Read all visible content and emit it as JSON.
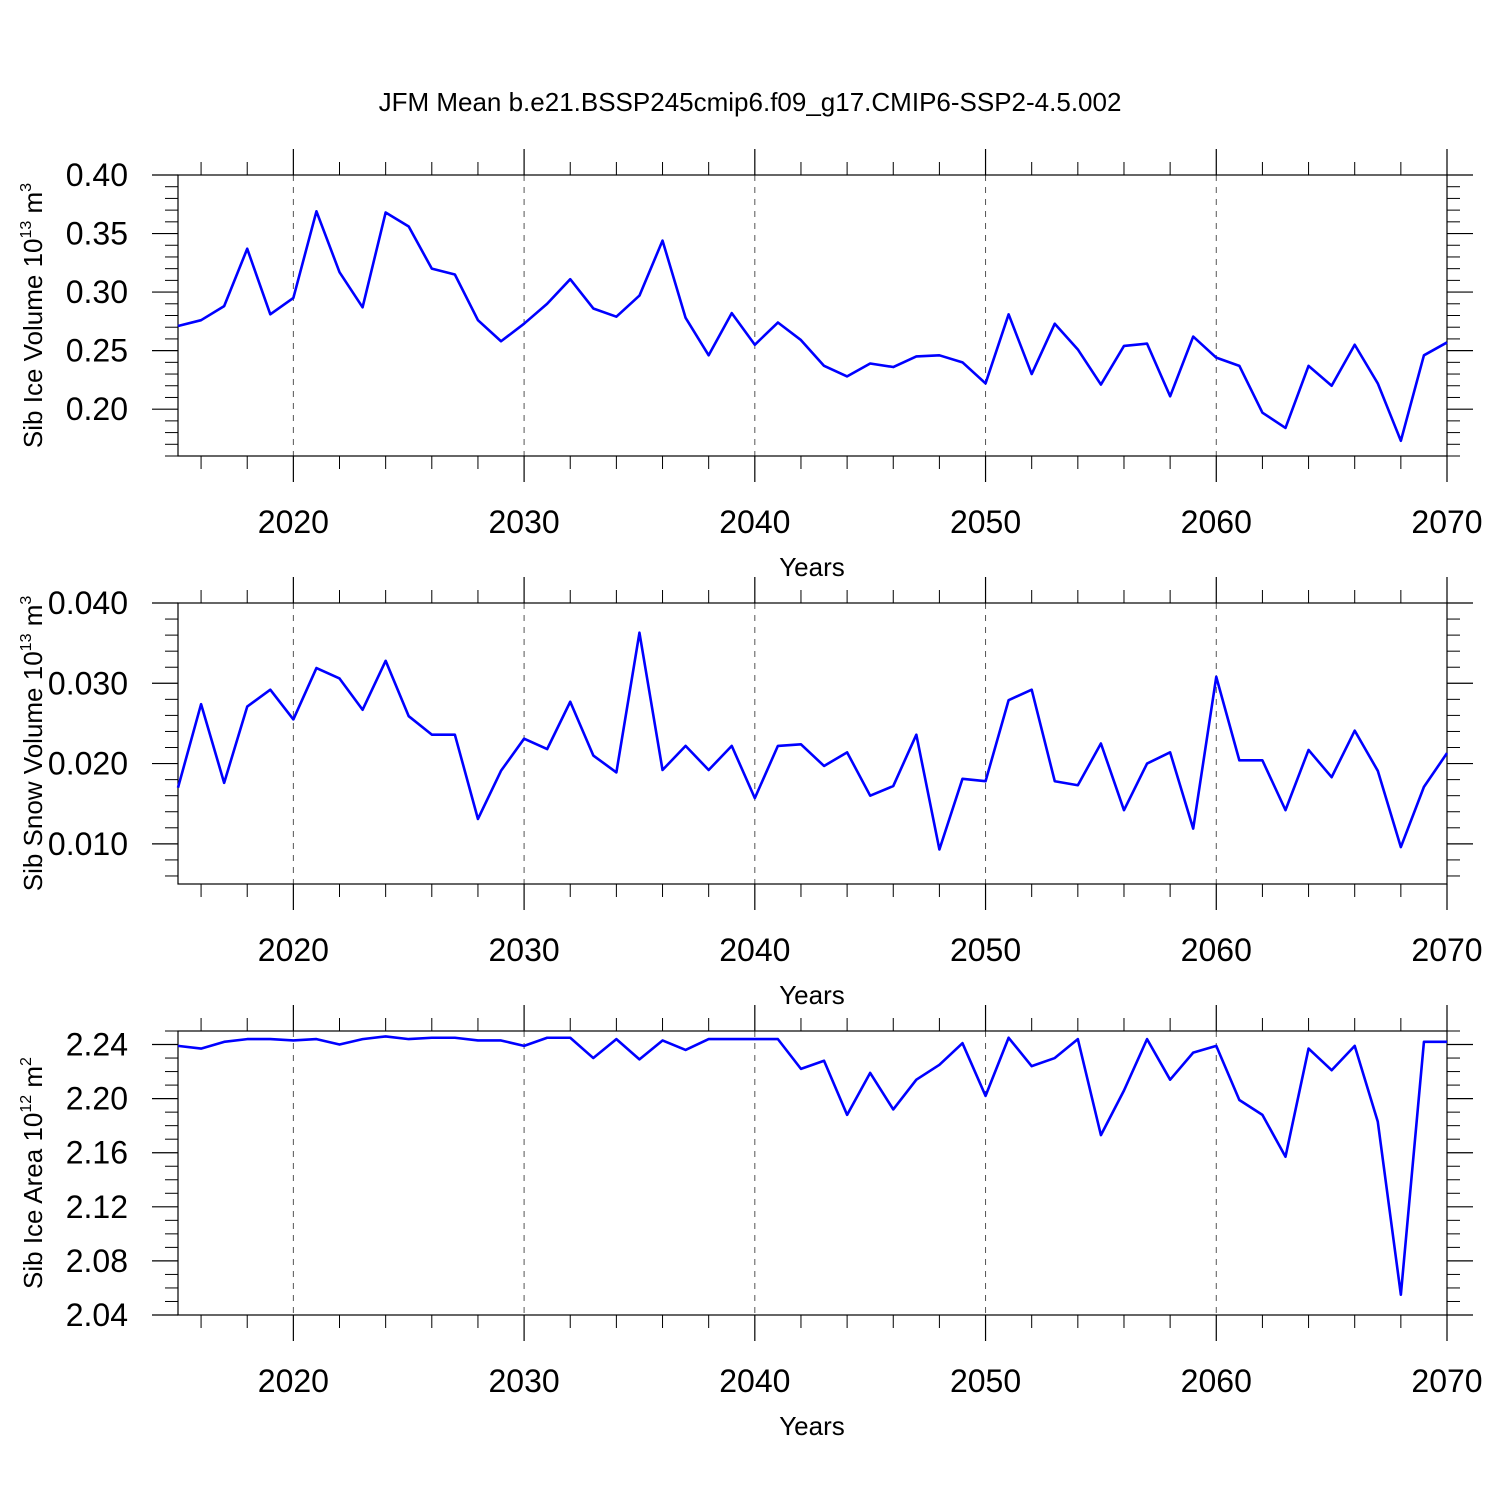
{
  "chart_data": [
    {
      "type": "line",
      "title": "JFM Mean b.e21.BSSP245cmip6.f09_g17.CMIP6-SSP2-4.5.002",
      "ylabel": [
        "Sib Ice Volume 10",
        "13",
        " m",
        "3"
      ],
      "xlabel": "Years",
      "color": "#0000ff",
      "grid": true,
      "x": [
        2015,
        2016,
        2017,
        2018,
        2019,
        2020,
        2021,
        2022,
        2023,
        2024,
        2025,
        2026,
        2027,
        2028,
        2029,
        2030,
        2031,
        2032,
        2033,
        2034,
        2035,
        2036,
        2037,
        2038,
        2039,
        2040,
        2041,
        2042,
        2043,
        2044,
        2045,
        2046,
        2047,
        2048,
        2049,
        2050,
        2051,
        2052,
        2053,
        2054,
        2055,
        2056,
        2057,
        2058,
        2059,
        2060,
        2061,
        2062,
        2063,
        2064,
        2065,
        2066,
        2067,
        2068,
        2069,
        2070
      ],
      "values": [
        0.271,
        0.276,
        0.288,
        0.337,
        0.281,
        0.295,
        0.369,
        0.317,
        0.287,
        0.368,
        0.356,
        0.32,
        0.315,
        0.276,
        0.258,
        0.273,
        0.29,
        0.311,
        0.286,
        0.279,
        0.297,
        0.344,
        0.278,
        0.246,
        0.282,
        0.255,
        0.274,
        0.259,
        0.237,
        0.228,
        0.239,
        0.236,
        0.245,
        0.246,
        0.24,
        0.222,
        0.281,
        0.23,
        0.273,
        0.251,
        0.221,
        0.254,
        0.256,
        0.211,
        0.262,
        0.244,
        0.237,
        0.197,
        0.184,
        0.237,
        0.22,
        0.255,
        0.222,
        0.173,
        0.246,
        0.257
      ],
      "xlim": [
        2015,
        2070
      ],
      "xticks": [
        2020,
        2030,
        2040,
        2050,
        2060,
        2070
      ],
      "ylim": [
        0.16,
        0.4
      ],
      "yticks": [
        {
          "value": 0.2,
          "label": "0.20"
        },
        {
          "value": 0.25,
          "label": "0.25"
        },
        {
          "value": 0.3,
          "label": "0.30"
        },
        {
          "value": 0.35,
          "label": "0.35"
        },
        {
          "value": 0.4,
          "label": "0.40"
        }
      ]
    },
    {
      "type": "line",
      "ylabel": [
        "Sib Snow Volume 10",
        "13",
        " m",
        "3"
      ],
      "xlabel": "Years",
      "color": "#0000ff",
      "grid": true,
      "x": [
        2015,
        2016,
        2017,
        2018,
        2019,
        2020,
        2021,
        2022,
        2023,
        2024,
        2025,
        2026,
        2027,
        2028,
        2029,
        2030,
        2031,
        2032,
        2033,
        2034,
        2035,
        2036,
        2037,
        2038,
        2039,
        2040,
        2041,
        2042,
        2043,
        2044,
        2045,
        2046,
        2047,
        2048,
        2049,
        2050,
        2051,
        2052,
        2053,
        2054,
        2055,
        2056,
        2057,
        2058,
        2059,
        2060,
        2061,
        2062,
        2063,
        2064,
        2065,
        2066,
        2067,
        2068,
        2069,
        2070
      ],
      "values": [
        0.017,
        0.0274,
        0.0176,
        0.0271,
        0.0292,
        0.0255,
        0.0319,
        0.0306,
        0.0267,
        0.0328,
        0.0259,
        0.0236,
        0.0236,
        0.0131,
        0.0191,
        0.0231,
        0.0218,
        0.0277,
        0.021,
        0.0189,
        0.0363,
        0.0192,
        0.0222,
        0.0192,
        0.0222,
        0.0157,
        0.0222,
        0.0224,
        0.0197,
        0.0214,
        0.016,
        0.0172,
        0.0236,
        0.0093,
        0.0181,
        0.0178,
        0.0279,
        0.0292,
        0.0178,
        0.0173,
        0.0225,
        0.0142,
        0.02,
        0.0214,
        0.0119,
        0.0308,
        0.0204,
        0.0204,
        0.0142,
        0.0217,
        0.0183,
        0.0241,
        0.0191,
        0.0096,
        0.0171,
        0.0213
      ],
      "xlim": [
        2015,
        2070
      ],
      "xticks": [
        2020,
        2030,
        2040,
        2050,
        2060,
        2070
      ],
      "ylim": [
        0.005,
        0.04
      ],
      "yticks": [
        {
          "value": 0.01,
          "label": "0.010"
        },
        {
          "value": 0.02,
          "label": "0.020"
        },
        {
          "value": 0.03,
          "label": "0.030"
        },
        {
          "value": 0.04,
          "label": "0.040"
        }
      ]
    },
    {
      "type": "line",
      "ylabel": [
        "Sib Ice Area 10",
        "12",
        " m",
        "2"
      ],
      "xlabel": "Years",
      "color": "#0000ff",
      "grid": true,
      "x": [
        2015,
        2016,
        2017,
        2018,
        2019,
        2020,
        2021,
        2022,
        2023,
        2024,
        2025,
        2026,
        2027,
        2028,
        2029,
        2030,
        2031,
        2032,
        2033,
        2034,
        2035,
        2036,
        2037,
        2038,
        2039,
        2040,
        2041,
        2042,
        2043,
        2044,
        2045,
        2046,
        2047,
        2048,
        2049,
        2050,
        2051,
        2052,
        2053,
        2054,
        2055,
        2056,
        2057,
        2058,
        2059,
        2060,
        2061,
        2062,
        2063,
        2064,
        2065,
        2066,
        2067,
        2068,
        2069,
        2070
      ],
      "values": [
        2.239,
        2.237,
        2.242,
        2.244,
        2.244,
        2.243,
        2.244,
        2.24,
        2.244,
        2.246,
        2.244,
        2.245,
        2.245,
        2.243,
        2.243,
        2.239,
        2.245,
        2.245,
        2.23,
        2.244,
        2.229,
        2.243,
        2.236,
        2.244,
        2.244,
        2.244,
        2.244,
        2.222,
        2.228,
        2.188,
        2.219,
        2.192,
        2.214,
        2.225,
        2.241,
        2.202,
        2.245,
        2.224,
        2.23,
        2.244,
        2.173,
        2.206,
        2.244,
        2.214,
        2.234,
        2.239,
        2.199,
        2.188,
        2.157,
        2.237,
        2.221,
        2.239,
        2.183,
        2.055,
        2.242,
        2.242
      ],
      "xlim": [
        2015,
        2070
      ],
      "xticks": [
        2020,
        2030,
        2040,
        2050,
        2060,
        2070
      ],
      "ylim": [
        2.04,
        2.25
      ],
      "yticks": [
        2.04,
        2.08,
        2.12,
        2.16,
        {
          "value": 2.2,
          "label": "2.20"
        },
        2.24
      ]
    }
  ]
}
